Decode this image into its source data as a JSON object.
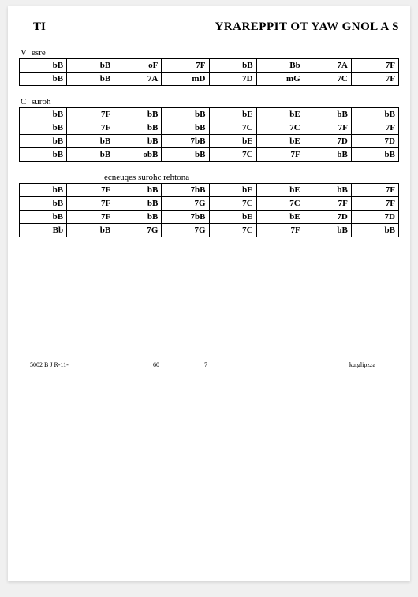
{
  "header": {
    "left": "TI",
    "right": "YRAREPPIT OT YAW GNOL A S"
  },
  "sections": [
    {
      "label_lead": "V",
      "label_rest": "esre",
      "rows": [
        [
          "bB",
          "bB",
          "oF",
          "7F",
          "bB",
          "Bb",
          "7A",
          "7F"
        ],
        [
          "bB",
          "bB",
          "7A",
          "mD",
          "7D",
          "mG",
          "7C",
          "7F"
        ]
      ]
    },
    {
      "label_lead": "C",
      "label_rest": "suroh",
      "rows": [
        [
          "bB",
          "7F",
          "bB",
          "bB",
          "bE",
          "bE",
          "bB",
          "bB"
        ],
        [
          "bB",
          "7F",
          "bB",
          "bB",
          "7C",
          "7C",
          "7F",
          "7F"
        ],
        [
          "bB",
          "bB",
          "bB",
          "7bB",
          "bE",
          "bE",
          "7D",
          "7D"
        ],
        [
          "bB",
          "bB",
          "obB",
          "bB",
          "7C",
          "7F",
          "bB",
          "bB"
        ]
      ]
    }
  ],
  "seq_label": "ecneuqes surohc rehtona",
  "seq_rows": [
    [
      "bB",
      "7F",
      "bB",
      "7bB",
      "bE",
      "bE",
      "bB",
      "7F"
    ],
    [
      "bB",
      "7F",
      "bB",
      "7G",
      "7C",
      "7C",
      "7F",
      "7F"
    ],
    [
      "bB",
      "7F",
      "bB",
      "7bB",
      "bE",
      "bE",
      "7D",
      "7D"
    ],
    [
      "Bb",
      "bB",
      "7G",
      "7G",
      "7C",
      "7F",
      "bB",
      "bB"
    ]
  ],
  "footer": {
    "left": "5002 B J R-11-",
    "mid1": "60",
    "mid2": "7",
    "right": "ku.glipzza"
  }
}
